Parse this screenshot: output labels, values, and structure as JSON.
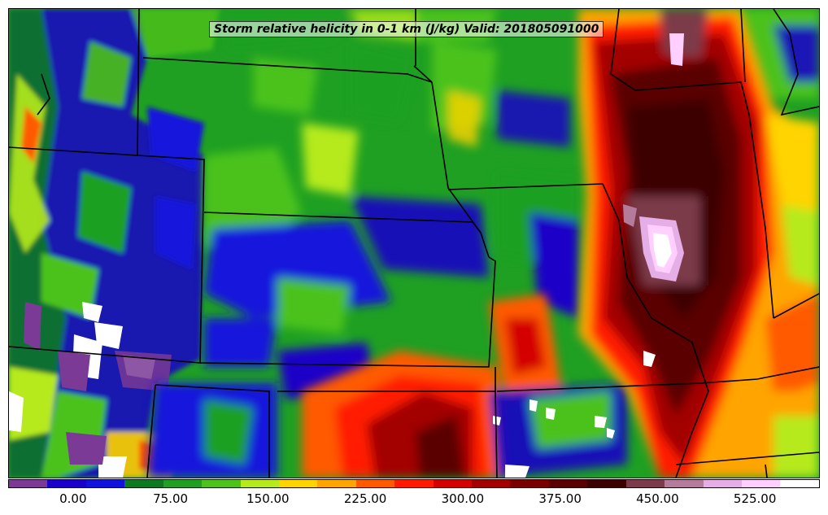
{
  "title": "Storm relative helicity in 0-1 km (J/kg) Valid: 201805091000",
  "colorbar": {
    "colors": [
      "#7a3a95",
      "#1a00c8",
      "#1212dc",
      "#0d7a22",
      "#1fa023",
      "#4cc21a",
      "#b6ea1a",
      "#ffd400",
      "#ffa400",
      "#ff5a00",
      "#ff1a00",
      "#d40000",
      "#a30000",
      "#7a0000",
      "#5a0000",
      "#3d0000",
      "#7c3a4a",
      "#b57b9a",
      "#e6aee6",
      "#ffd0ff",
      "#ffffff"
    ],
    "ticks": [
      "0.00",
      "75.00",
      "150.00",
      "225.00",
      "300.00",
      "375.00",
      "450.00",
      "525.00"
    ]
  },
  "legend_values": {
    "min": -50,
    "max": 575,
    "tick_values": [
      0,
      75,
      150,
      225,
      300,
      375,
      450,
      525
    ]
  }
}
